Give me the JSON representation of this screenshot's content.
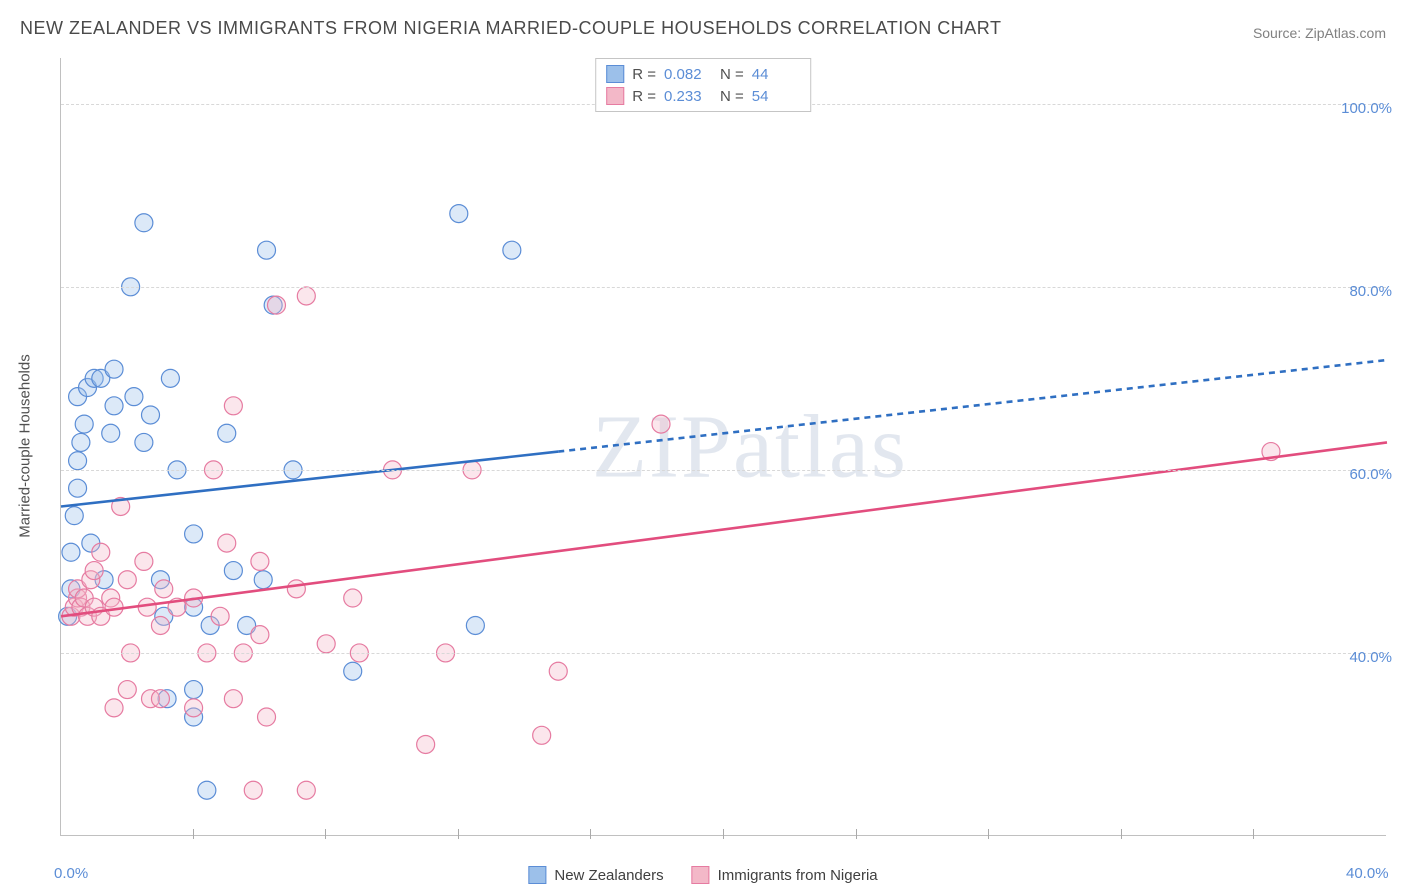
{
  "title": "NEW ZEALANDER VS IMMIGRANTS FROM NIGERIA MARRIED-COUPLE HOUSEHOLDS CORRELATION CHART",
  "source": "Source: ZipAtlas.com",
  "watermark": "ZIPatlas",
  "y_axis_label": "Married-couple Households",
  "chart": {
    "type": "scatter-with-trend",
    "background_color": "#ffffff",
    "grid_color": "#d8d8d8",
    "axis_color": "#c0c0c0",
    "tick_font_color": "#5b8dd6",
    "tick_fontsize": 15,
    "title_fontsize": 18,
    "xlim": [
      0,
      40
    ],
    "ylim": [
      20,
      105
    ],
    "y_ticks": [
      40,
      60,
      80,
      100
    ],
    "y_tick_labels": [
      "40.0%",
      "60.0%",
      "80.0%",
      "100.0%"
    ],
    "x_ticks": [
      0,
      40
    ],
    "x_tick_labels": [
      "0.0%",
      "40.0%"
    ],
    "x_minor_ticks": [
      4,
      8,
      12,
      16,
      20,
      24,
      28,
      32,
      36
    ],
    "marker_radius": 9,
    "marker_stroke_width": 1.2,
    "marker_fill_opacity": 0.35,
    "trend_line_width": 2.6,
    "trend_dash": "6,5"
  },
  "series": [
    {
      "name": "New Zealanders",
      "color_fill": "#9cc0ea",
      "color_stroke": "#5b8dd6",
      "trend_color": "#2f6fc2",
      "R": "0.082",
      "N": "44",
      "trend": {
        "x1": 0,
        "y1": 56,
        "x2": 40,
        "y2": 72,
        "solid_until_x": 15
      },
      "points": [
        [
          0.2,
          44
        ],
        [
          0.3,
          47
        ],
        [
          0.3,
          51
        ],
        [
          0.4,
          55
        ],
        [
          0.5,
          58
        ],
        [
          0.5,
          61
        ],
        [
          0.6,
          63
        ],
        [
          0.7,
          65
        ],
        [
          0.5,
          68
        ],
        [
          0.8,
          69
        ],
        [
          1.0,
          70
        ],
        [
          1.2,
          70
        ],
        [
          0.9,
          52
        ],
        [
          1.3,
          48
        ],
        [
          1.5,
          64
        ],
        [
          1.6,
          67
        ],
        [
          1.6,
          71
        ],
        [
          2.1,
          80
        ],
        [
          2.2,
          68
        ],
        [
          2.5,
          63
        ],
        [
          2.7,
          66
        ],
        [
          2.5,
          87
        ],
        [
          3.0,
          48
        ],
        [
          3.3,
          70
        ],
        [
          3.5,
          60
        ],
        [
          3.1,
          44
        ],
        [
          4.0,
          53
        ],
        [
          4.0,
          45
        ],
        [
          4.0,
          33
        ],
        [
          4.0,
          36
        ],
        [
          4.5,
          43
        ],
        [
          4.4,
          25
        ],
        [
          5.0,
          64
        ],
        [
          5.2,
          49
        ],
        [
          5.6,
          43
        ],
        [
          6.1,
          48
        ],
        [
          6.2,
          84
        ],
        [
          6.4,
          78
        ],
        [
          7.0,
          60
        ],
        [
          8.8,
          38
        ],
        [
          12.5,
          43
        ],
        [
          12.0,
          88
        ],
        [
          13.6,
          84
        ],
        [
          3.2,
          35
        ]
      ]
    },
    {
      "name": "Immigrants from Nigeria",
      "color_fill": "#f3b8c8",
      "color_stroke": "#e67ba1",
      "trend_color": "#e24d7e",
      "R": "0.233",
      "N": "54",
      "trend": {
        "x1": 0,
        "y1": 44,
        "x2": 40,
        "y2": 63,
        "solid_until_x": 40
      },
      "points": [
        [
          0.3,
          44
        ],
        [
          0.4,
          45
        ],
        [
          0.5,
          46
        ],
        [
          0.5,
          47
        ],
        [
          0.6,
          45
        ],
        [
          0.7,
          46
        ],
        [
          0.8,
          44
        ],
        [
          0.9,
          48
        ],
        [
          1.0,
          45
        ],
        [
          1.0,
          49
        ],
        [
          1.2,
          44
        ],
        [
          1.2,
          51
        ],
        [
          1.5,
          46
        ],
        [
          1.6,
          45
        ],
        [
          1.8,
          56
        ],
        [
          2.0,
          48
        ],
        [
          2.1,
          40
        ],
        [
          1.6,
          34
        ],
        [
          2.0,
          36
        ],
        [
          2.5,
          50
        ],
        [
          2.6,
          45
        ],
        [
          2.7,
          35
        ],
        [
          3.0,
          43
        ],
        [
          3.1,
          47
        ],
        [
          3.0,
          35
        ],
        [
          3.5,
          45
        ],
        [
          4.0,
          46
        ],
        [
          4.0,
          34
        ],
        [
          4.4,
          40
        ],
        [
          4.6,
          60
        ],
        [
          4.8,
          44
        ],
        [
          5.0,
          52
        ],
        [
          5.5,
          40
        ],
        [
          5.2,
          67
        ],
        [
          5.2,
          35
        ],
        [
          5.8,
          25
        ],
        [
          6.0,
          50
        ],
        [
          6.0,
          42
        ],
        [
          6.2,
          33
        ],
        [
          6.5,
          78
        ],
        [
          7.1,
          47
        ],
        [
          7.4,
          79
        ],
        [
          8.0,
          41
        ],
        [
          7.4,
          25
        ],
        [
          8.8,
          46
        ],
        [
          9.0,
          40
        ],
        [
          10.0,
          60
        ],
        [
          11.0,
          30
        ],
        [
          11.6,
          40
        ],
        [
          12.4,
          60
        ],
        [
          14.5,
          31
        ],
        [
          15.0,
          38
        ],
        [
          18.1,
          65
        ],
        [
          36.5,
          62
        ]
      ]
    }
  ],
  "legend_top_labels": {
    "R": "R =",
    "N": "N ="
  },
  "legend_bottom": [
    "New Zealanders",
    "Immigrants from Nigeria"
  ]
}
